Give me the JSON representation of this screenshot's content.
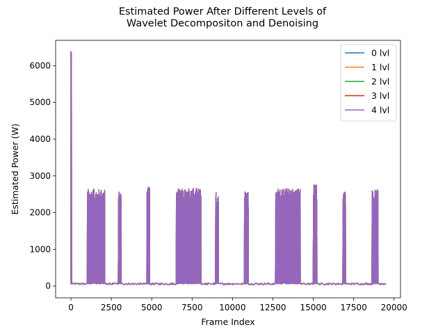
{
  "chart_data": {
    "type": "line",
    "title_line1": "Estimated Power After Different Levels of",
    "title_line2": "Wavelet Decompositon and Denoising",
    "xlabel": "Frame Index",
    "ylabel": "Estimated Power (W)",
    "xlim": [
      -950,
      20400
    ],
    "ylim": [
      -320,
      6690
    ],
    "xticks": [
      0,
      2500,
      5000,
      7500,
      10000,
      12500,
      15000,
      17500,
      20000
    ],
    "xtick_labels": [
      "0",
      "2500",
      "5000",
      "7500",
      "10000",
      "12500",
      "15000",
      "17500",
      "20000"
    ],
    "yticks": [
      0,
      1000,
      2000,
      3000,
      4000,
      5000,
      6000
    ],
    "ytick_labels": [
      "0",
      "1000",
      "2000",
      "3000",
      "4000",
      "5000",
      "6000"
    ],
    "legend_position": "top-right",
    "baseline_power": 60,
    "x_end": 19500,
    "series": [
      {
        "name": "0 lvl",
        "color": "#1f77b4"
      },
      {
        "name": "1 lvl",
        "color": "#ff7f0e"
      },
      {
        "name": "2 lvl",
        "color": "#2ca02c"
      },
      {
        "name": "3 lvl",
        "color": "#d62728"
      },
      {
        "name": "4 lvl",
        "color": "#9467bd"
      }
    ],
    "spikes": [
      {
        "x": 0,
        "peak": 6380
      },
      {
        "x": 30,
        "peak": 6350
      }
    ],
    "active_segments": [
      {
        "start": 1020,
        "end": 2100,
        "peak": 2640
      },
      {
        "start": 2950,
        "end": 3100,
        "peak": 2600
      },
      {
        "start": 4700,
        "end": 4880,
        "peak": 2700
      },
      {
        "start": 6530,
        "end": 8050,
        "peak": 2660
      },
      {
        "start": 8960,
        "end": 9130,
        "peak": 2560
      },
      {
        "start": 10750,
        "end": 10990,
        "peak": 2600
      },
      {
        "start": 12680,
        "end": 14200,
        "peak": 2660
      },
      {
        "start": 15020,
        "end": 15230,
        "peak": 2770
      },
      {
        "start": 16850,
        "end": 17000,
        "peak": 2590
      },
      {
        "start": 18650,
        "end": 19020,
        "peak": 2620
      }
    ]
  }
}
